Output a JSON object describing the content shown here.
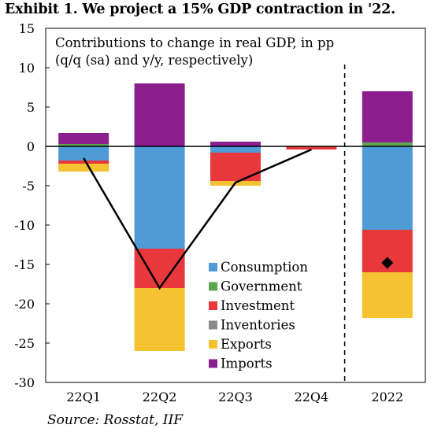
{
  "title": "Exhibit 1. We project a 15% GDP contraction in '22.",
  "source": "Source: Rosstat, IIF",
  "chart_data": {
    "type": "bar",
    "stacked": true,
    "subtitle_line1": "Contributions to change in real GDP, in pp",
    "subtitle_line2": "(q/q (sa) and y/y, respectively)",
    "categories": [
      "22Q1",
      "22Q2",
      "22Q3",
      "22Q4",
      "2022"
    ],
    "ylim": [
      -30,
      15
    ],
    "yticks": [
      15,
      10,
      5,
      0,
      -5,
      -10,
      -15,
      -20,
      -25,
      -30
    ],
    "series": [
      {
        "name": "Consumption",
        "color": "#4e9bd6",
        "values": [
          -1.8,
          -13.0,
          -0.8,
          0.0,
          -10.6
        ]
      },
      {
        "name": "Government",
        "color": "#5da551",
        "values": [
          0.3,
          0.0,
          0.0,
          0.0,
          0.5
        ]
      },
      {
        "name": "Investment",
        "color": "#e8383b",
        "values": [
          -0.4,
          -5.0,
          -3.6,
          -0.4,
          -5.4
        ]
      },
      {
        "name": "Inventories",
        "color": "#8a8a8a",
        "values": [
          0.0,
          0.0,
          0.0,
          0.0,
          0.0
        ]
      },
      {
        "name": "Exports",
        "color": "#f5c232",
        "values": [
          -1.0,
          -8.0,
          -0.6,
          0.0,
          -5.8
        ]
      },
      {
        "name": "Imports",
        "color": "#8b1f8f",
        "values": [
          1.4,
          8.0,
          0.6,
          0.0,
          6.5
        ]
      }
    ],
    "gdp_line": {
      "categories": [
        "22Q1",
        "22Q2",
        "22Q3",
        "22Q4"
      ],
      "values": [
        -1.5,
        -18.0,
        -4.6,
        -0.4
      ],
      "color": "#000000"
    },
    "gdp_marker": {
      "category": "2022",
      "value": -14.8,
      "shape": "diamond",
      "color": "#000000"
    },
    "divider": {
      "style": "dashed",
      "between": [
        "22Q4",
        "2022"
      ]
    },
    "legend_position": "bottom-center inside",
    "grid": false,
    "zero_line": true
  }
}
